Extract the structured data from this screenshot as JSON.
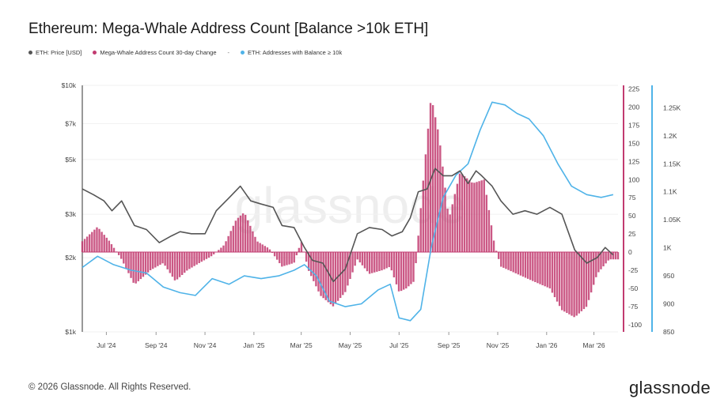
{
  "title": "Ethereum: Mega-Whale Address Count [Balance >10k ETH]",
  "legend": {
    "items": [
      {
        "label": "ETH: Price [USD]",
        "color": "#555555"
      },
      {
        "label": "Mega-Whale Address Count 30-day Change",
        "color": "#c23b70"
      },
      {
        "label": "ETH: Addresses with Balance ≥ 10k",
        "color": "#4fb3e8"
      }
    ],
    "separator": "-"
  },
  "watermark": "glassnode",
  "footer": {
    "copyright": "© 2026 Glassnode. All Rights Reserved.",
    "brand": "glassnode"
  },
  "chart_data": {
    "type": "line",
    "x_ticks": [
      "Jul '24",
      "Sep '24",
      "Nov '24",
      "Jan '25",
      "Mar '25",
      "May '25",
      "Jul '25",
      "Sep '25",
      "Nov '25",
      "Jan '26",
      "Mar '26"
    ],
    "x_range": [
      "2024-06-01",
      "2026-03-31"
    ],
    "price_axis": {
      "scale": "log",
      "ticks": [
        "$1k",
        "$2k",
        "$3k",
        "$5k",
        "$7k",
        "$10k"
      ],
      "tick_values": [
        1000,
        2000,
        3000,
        5000,
        7000,
        10000
      ],
      "range": [
        1000,
        10000
      ]
    },
    "change_axis": {
      "ticks": [
        "-100",
        "-75",
        "-50",
        "-25",
        "0",
        "25",
        "50",
        "75",
        "100",
        "125",
        "150",
        "175",
        "200",
        "225"
      ],
      "range": [
        -110,
        230
      ]
    },
    "count_axis": {
      "ticks": [
        "850",
        "900",
        "950",
        "1K",
        "1.05K",
        "1.1K",
        "1.15K",
        "1.2K",
        "1.25K"
      ],
      "tick_values": [
        850,
        900,
        950,
        1000,
        1050,
        1100,
        1150,
        1200,
        1250
      ],
      "range": [
        850,
        1290
      ]
    },
    "series": [
      {
        "name": "ETH: Price [USD]",
        "axis": "price",
        "style": "line",
        "color": "#555555",
        "x": [
          "2024-06-01",
          "2024-06-15",
          "2024-06-28",
          "2024-07-08",
          "2024-07-20",
          "2024-08-05",
          "2024-08-20",
          "2024-09-05",
          "2024-09-20",
          "2024-10-01",
          "2024-10-15",
          "2024-11-01",
          "2024-11-15",
          "2024-12-01",
          "2024-12-15",
          "2024-12-28",
          "2025-01-10",
          "2025-01-25",
          "2025-02-05",
          "2025-02-20",
          "2025-03-05",
          "2025-03-15",
          "2025-03-28",
          "2025-04-10",
          "2025-04-25",
          "2025-05-10",
          "2025-05-25",
          "2025-06-10",
          "2025-06-22",
          "2025-07-05",
          "2025-07-15",
          "2025-07-25",
          "2025-08-05",
          "2025-08-15",
          "2025-08-25",
          "2025-09-05",
          "2025-09-15",
          "2025-09-25",
          "2025-10-05",
          "2025-10-12",
          "2025-10-25",
          "2025-11-05",
          "2025-11-20",
          "2025-12-05",
          "2025-12-20",
          "2026-01-05",
          "2026-01-20",
          "2026-02-05",
          "2026-02-20",
          "2026-03-05",
          "2026-03-15",
          "2026-03-25"
        ],
        "y": [
          3800,
          3600,
          3400,
          3100,
          3400,
          2700,
          2600,
          2300,
          2450,
          2550,
          2500,
          2500,
          3100,
          3500,
          3900,
          3400,
          3300,
          3200,
          2700,
          2650,
          2200,
          1950,
          1900,
          1600,
          1800,
          2500,
          2650,
          2600,
          2450,
          2550,
          2900,
          3700,
          3800,
          4600,
          4300,
          4300,
          4500,
          4000,
          4500,
          4300,
          3900,
          3400,
          3000,
          3100,
          3000,
          3200,
          3000,
          2150,
          1900,
          2000,
          2200,
          2050
        ]
      },
      {
        "name": "Mega-Whale Address Count 30-day Change",
        "axis": "change",
        "style": "bar",
        "color": "#c23b70",
        "x": [
          "2024-06-01",
          "2024-06-20",
          "2024-07-05",
          "2024-07-20",
          "2024-08-05",
          "2024-08-25",
          "2024-09-10",
          "2024-09-25",
          "2024-10-10",
          "2024-10-25",
          "2024-11-10",
          "2024-11-25",
          "2024-12-10",
          "2024-12-20",
          "2025-01-05",
          "2025-01-20",
          "2025-02-05",
          "2025-02-20",
          "2025-03-01",
          "2025-03-10",
          "2025-03-25",
          "2025-04-10",
          "2025-04-25",
          "2025-05-10",
          "2025-05-25",
          "2025-06-10",
          "2025-06-20",
          "2025-07-01",
          "2025-07-10",
          "2025-07-20",
          "2025-08-01",
          "2025-08-10",
          "2025-08-20",
          "2025-09-01",
          "2025-09-15",
          "2025-10-01",
          "2025-10-15",
          "2025-10-28",
          "2025-11-05",
          "2025-11-25",
          "2025-12-15",
          "2026-01-05",
          "2026-01-20",
          "2026-02-05",
          "2026-02-20",
          "2026-03-05",
          "2026-03-20"
        ],
        "y": [
          15,
          35,
          15,
          -10,
          -45,
          -25,
          -15,
          -40,
          -25,
          -15,
          -5,
          10,
          45,
          55,
          15,
          5,
          -20,
          -15,
          15,
          -25,
          -60,
          -75,
          -55,
          -10,
          -30,
          -25,
          -20,
          -55,
          -50,
          -40,
          110,
          215,
          160,
          45,
          110,
          95,
          100,
          10,
          -20,
          -30,
          -40,
          -50,
          -80,
          -90,
          -75,
          -30,
          -10
        ]
      },
      {
        "name": "ETH: Addresses with Balance ≥ 10k",
        "axis": "count",
        "style": "line",
        "color": "#4fb3e8",
        "x": [
          "2024-06-01",
          "2024-06-20",
          "2024-07-10",
          "2024-08-01",
          "2024-08-20",
          "2024-09-10",
          "2024-10-01",
          "2024-10-20",
          "2024-11-10",
          "2024-12-01",
          "2024-12-20",
          "2025-01-10",
          "2025-02-01",
          "2025-02-20",
          "2025-03-05",
          "2025-03-20",
          "2025-04-05",
          "2025-04-25",
          "2025-05-15",
          "2025-06-05",
          "2025-06-20",
          "2025-07-01",
          "2025-07-15",
          "2025-07-28",
          "2025-08-10",
          "2025-08-25",
          "2025-09-10",
          "2025-09-25",
          "2025-10-10",
          "2025-10-25",
          "2025-11-10",
          "2025-11-25",
          "2025-12-10",
          "2025-12-28",
          "2026-01-15",
          "2026-02-01",
          "2026-02-20",
          "2026-03-10",
          "2026-03-25"
        ],
        "y": [
          965,
          985,
          970,
          960,
          955,
          930,
          920,
          915,
          945,
          935,
          950,
          945,
          950,
          960,
          970,
          950,
          905,
          895,
          900,
          925,
          935,
          875,
          870,
          890,
          1000,
          1090,
          1130,
          1150,
          1210,
          1260,
          1255,
          1240,
          1230,
          1200,
          1150,
          1110,
          1095,
          1090,
          1095
        ]
      }
    ]
  }
}
